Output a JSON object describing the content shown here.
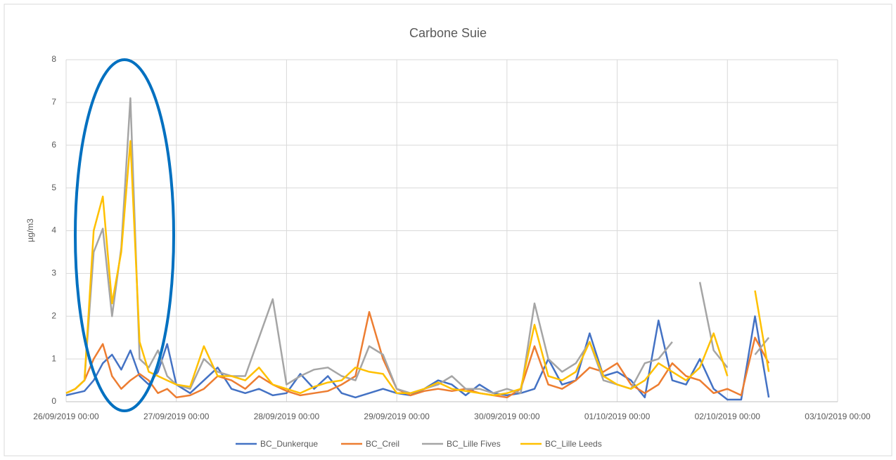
{
  "chart_data": {
    "type": "line",
    "title": "Carbone Suie",
    "y_label": "µg/m3",
    "x": [
      0,
      2,
      4,
      6,
      8,
      10,
      12,
      14,
      16,
      18,
      20,
      22,
      24,
      27,
      30,
      33,
      36,
      39,
      42,
      45,
      48,
      51,
      54,
      57,
      60,
      63,
      66,
      69,
      72,
      75,
      78,
      81,
      84,
      87,
      90,
      93,
      96,
      99,
      102,
      105,
      108,
      111,
      114,
      117,
      120,
      123,
      126,
      129,
      132,
      135,
      138,
      141,
      144,
      147,
      150,
      153
    ],
    "xlim": [
      0,
      168
    ],
    "xticks": [
      {
        "value": 0,
        "label": "26/09/2019 00:00"
      },
      {
        "value": 24,
        "label": "27/09/2019 00:00"
      },
      {
        "value": 48,
        "label": "28/09/2019 00:00"
      },
      {
        "value": 72,
        "label": "29/09/2019 00:00"
      },
      {
        "value": 96,
        "label": "30/09/2019 00:00"
      },
      {
        "value": 120,
        "label": "01/10/2019 00:00"
      },
      {
        "value": 144,
        "label": "02/10/2019 00:00"
      },
      {
        "value": 168,
        "label": "03/10/2019 00:00"
      }
    ],
    "ylim": [
      0,
      8
    ],
    "yticks": [
      0,
      1,
      2,
      3,
      4,
      5,
      6,
      7,
      8
    ],
    "grid": true,
    "legend": "bottom",
    "series": [
      {
        "name": "BC_Dunkerque",
        "color": "#4472c4",
        "values": [
          0.15,
          0.2,
          0.25,
          0.5,
          0.9,
          1.1,
          0.75,
          1.2,
          0.6,
          0.4,
          0.7,
          1.35,
          0.4,
          0.2,
          0.5,
          0.8,
          0.3,
          0.2,
          0.3,
          0.15,
          0.2,
          0.65,
          0.3,
          0.6,
          0.2,
          0.1,
          0.2,
          0.3,
          0.2,
          0.15,
          0.3,
          0.5,
          0.4,
          0.15,
          0.4,
          0.2,
          0.15,
          0.2,
          0.3,
          1.0,
          0.4,
          0.5,
          1.6,
          0.6,
          0.7,
          0.5,
          0.1,
          1.9,
          0.5,
          0.4,
          1.0,
          0.3,
          0.05,
          0.05,
          2.0,
          0.1
        ]
      },
      {
        "name": "BC_Creil",
        "color": "#ed7d31",
        "values": [
          0.2,
          0.3,
          0.5,
          1.0,
          1.35,
          0.6,
          0.3,
          0.5,
          0.65,
          0.5,
          0.2,
          0.3,
          0.1,
          0.15,
          0.3,
          0.6,
          0.5,
          0.3,
          0.6,
          0.4,
          0.25,
          0.15,
          0.2,
          0.25,
          0.4,
          0.6,
          2.1,
          1.0,
          0.3,
          0.15,
          0.25,
          0.3,
          0.25,
          0.3,
          0.2,
          0.15,
          0.1,
          0.3,
          1.3,
          0.4,
          0.3,
          0.5,
          0.8,
          0.7,
          0.9,
          0.4,
          0.2,
          0.4,
          0.9,
          0.6,
          0.5,
          0.2,
          0.3,
          0.15,
          1.5,
          0.9
        ]
      },
      {
        "name": "BC_Lille Fives",
        "color": "#a5a5a5",
        "values": [
          0.2,
          0.3,
          0.5,
          3.5,
          4.05,
          2.0,
          3.6,
          7.1,
          1.0,
          0.8,
          1.2,
          0.6,
          0.4,
          0.3,
          1.0,
          0.7,
          0.6,
          0.6,
          1.5,
          2.4,
          0.4,
          0.6,
          0.75,
          0.8,
          0.6,
          0.5,
          1.3,
          1.1,
          0.3,
          0.2,
          0.3,
          0.4,
          0.6,
          0.3,
          0.3,
          0.2,
          0.3,
          0.2,
          2.3,
          1.0,
          0.7,
          0.9,
          1.4,
          0.5,
          0.4,
          0.3,
          0.9,
          1.0,
          1.4,
          null,
          2.8,
          1.2,
          0.8,
          null,
          1.1,
          1.5
        ]
      },
      {
        "name": "BC_Lille Leeds",
        "color": "#ffc000",
        "values": [
          0.2,
          0.3,
          0.5,
          4.0,
          4.8,
          2.3,
          3.5,
          6.1,
          1.4,
          0.7,
          0.6,
          0.5,
          0.4,
          0.35,
          1.3,
          0.6,
          0.6,
          0.5,
          0.8,
          0.4,
          0.3,
          0.2,
          0.35,
          0.45,
          0.5,
          0.8,
          0.7,
          0.65,
          0.2,
          0.2,
          0.3,
          0.45,
          0.3,
          0.25,
          0.2,
          0.15,
          0.2,
          0.3,
          1.8,
          0.6,
          0.5,
          0.7,
          1.4,
          0.6,
          0.4,
          0.3,
          0.5,
          0.9,
          0.7,
          0.5,
          0.8,
          1.6,
          0.6,
          null,
          2.6,
          0.7
        ]
      }
    ]
  }
}
